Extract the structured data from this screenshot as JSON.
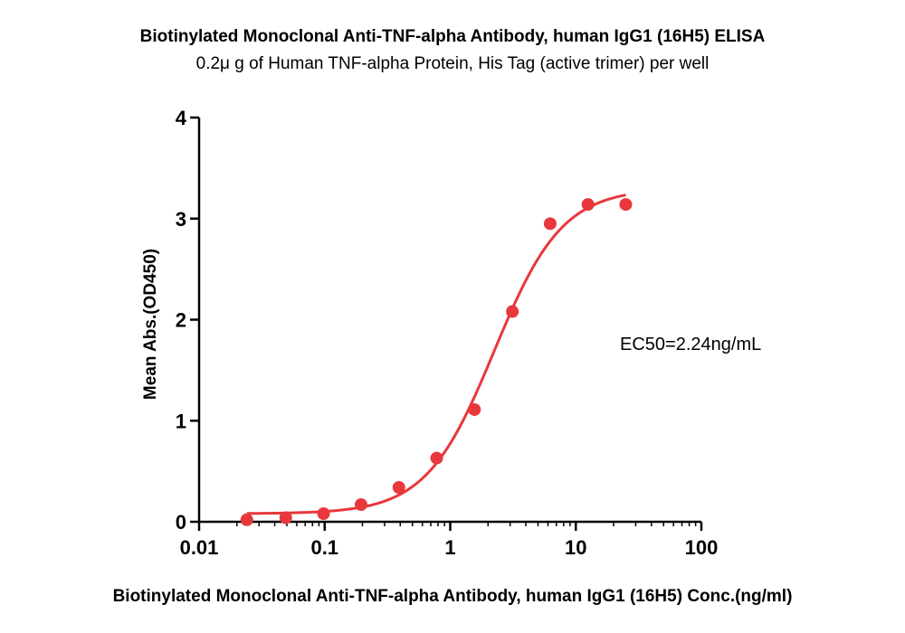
{
  "chart_data": {
    "type": "scatter",
    "title": "Biotinylated Monoclonal Anti-TNF-alpha Antibody, human IgG1 (16H5)  ELISA",
    "subtitle": "0.2μ g of Human TNF-alpha Protein, His Tag (active trimer) per well",
    "xlabel": "Biotinylated Monoclonal Anti-TNF-alpha Antibody, human IgG1 (16H5)  Conc.(ng/ml)",
    "ylabel": "Mean Abs.(OD450)",
    "xscale": "log",
    "xlim": [
      0.01,
      100
    ],
    "ylim": [
      0,
      4
    ],
    "xticks": [
      "0.01",
      "0.1",
      "1",
      "10",
      "100"
    ],
    "yticks": [
      "0",
      "1",
      "2",
      "3",
      "4"
    ],
    "grid": false,
    "series": [
      {
        "color": "#e8383b",
        "x": [
          0.024,
          0.049,
          0.098,
          0.195,
          0.39,
          0.78,
          1.56,
          3.125,
          6.25,
          12.5,
          25
        ],
        "y": [
          0.02,
          0.04,
          0.08,
          0.17,
          0.34,
          0.63,
          1.11,
          2.08,
          2.95,
          3.14,
          3.14
        ]
      }
    ],
    "fit_curve": {
      "model": "4PL",
      "bottom": 0.08,
      "top": 3.3,
      "ec50": 2.24,
      "hill": 1.6
    },
    "annotation": "EC50=2.24ng/mL"
  }
}
